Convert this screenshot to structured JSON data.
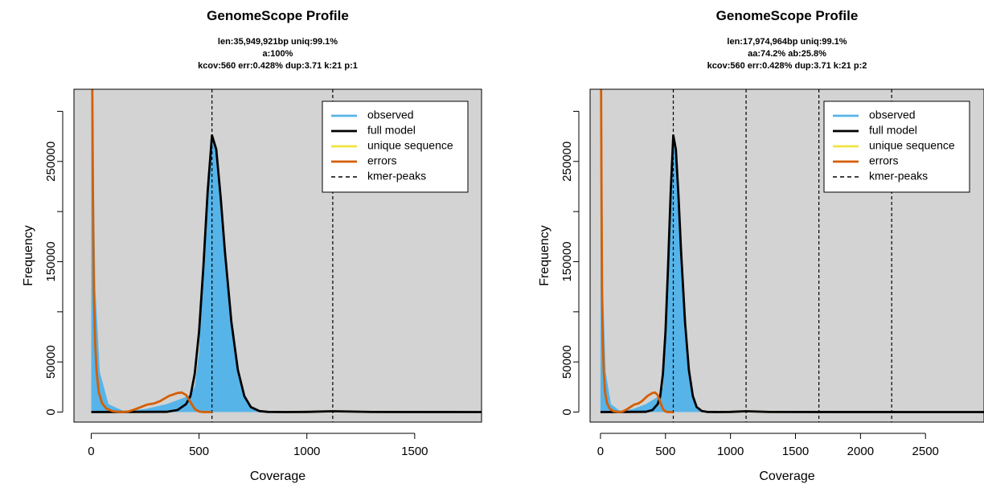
{
  "chart_data": [
    {
      "type": "area",
      "title": "GenomeScope Profile",
      "subtitle_lines": [
        "len:35,949,921bp uniq:99.1%",
        "a:100%",
        "kcov:560 err:0.428%  dup:3.71  k:21 p:1"
      ],
      "xlabel": "Coverage",
      "ylabel": "Frequency",
      "xlim": [
        -80,
        1810
      ],
      "ylim": [
        -10000,
        322000
      ],
      "x_ticks": [
        0,
        500,
        1000,
        1500
      ],
      "y_ticks": [
        0,
        50000,
        100000,
        150000,
        200000,
        250000,
        300000
      ],
      "y_tick_labels": [
        "0",
        "50000",
        "",
        "150000",
        "",
        "250000",
        ""
      ],
      "background": "#d3d3d3",
      "kmer_peaks": [
        560,
        1120
      ],
      "legend_position": "top-right",
      "legend": [
        "observed",
        "full model",
        "unique sequence",
        "errors",
        "kmer-peaks"
      ],
      "colors": {
        "observed": "#56b4e9",
        "full_model": "#000000",
        "unique_sequence": "#f0e442",
        "errors": "#d55e00"
      },
      "model": {
        "kcov": 560,
        "peak_height": 276000,
        "ploidy": 1
      },
      "series": [
        {
          "name": "observed",
          "x": [
            0,
            5,
            10,
            20,
            40,
            80,
            150,
            250,
            350,
            400,
            450,
            480,
            500,
            520,
            540,
            560,
            580,
            600,
            630,
            660,
            700,
            750,
            800,
            900,
            1000,
            1120,
            1300,
            1500,
            1810
          ],
          "y": [
            322000,
            322000,
            250000,
            120000,
            40000,
            8000,
            1000,
            3000,
            8000,
            12000,
            16000,
            25000,
            60000,
            150000,
            230000,
            275000,
            262000,
            220000,
            140000,
            70000,
            20000,
            4000,
            800,
            200,
            100,
            800,
            100,
            50,
            0
          ]
        },
        {
          "name": "full model",
          "x": [
            0,
            350,
            400,
            440,
            460,
            480,
            500,
            520,
            540,
            560,
            580,
            600,
            620,
            650,
            680,
            710,
            740,
            780,
            820,
            900,
            1000,
            1120,
            1300,
            1810
          ],
          "y": [
            0,
            300,
            2000,
            8000,
            16000,
            38000,
            80000,
            145000,
            220000,
            276000,
            262000,
            215000,
            160000,
            90000,
            42000,
            16000,
            5000,
            1000,
            200,
            50,
            200,
            800,
            100,
            0
          ]
        },
        {
          "name": "unique sequence",
          "x": [
            900,
            1000,
            1120,
            1250,
            1400
          ],
          "y": [
            0,
            300,
            800,
            300,
            0
          ]
        },
        {
          "name": "errors",
          "x": [
            5,
            8,
            12,
            18,
            25,
            35,
            50,
            70,
            100,
            140,
            170,
            200,
            230,
            260,
            290,
            320,
            360,
            400,
            420,
            440,
            460,
            480,
            500,
            520,
            560
          ],
          "y": [
            322000,
            220000,
            120000,
            70000,
            40000,
            20000,
            9000,
            3500,
            800,
            0,
            500,
            2500,
            5000,
            7500,
            8500,
            11000,
            16000,
            19000,
            19500,
            17000,
            10000,
            3000,
            500,
            0,
            0
          ]
        }
      ]
    },
    {
      "type": "area",
      "title": "GenomeScope Profile",
      "subtitle_lines": [
        "len:17,974,964bp uniq:99.1%",
        "aa:74.2% ab:25.8%",
        "kcov:560 err:0.428%  dup:3.71  k:21 p:2"
      ],
      "xlabel": "Coverage",
      "ylabel": "Frequency",
      "xlim": [
        -80,
        2950
      ],
      "ylim": [
        -10000,
        322000
      ],
      "x_ticks": [
        0,
        500,
        1000,
        1500,
        2000,
        2500
      ],
      "y_ticks": [
        0,
        50000,
        100000,
        150000,
        200000,
        250000,
        300000
      ],
      "y_tick_labels": [
        "0",
        "50000",
        "",
        "150000",
        "",
        "250000",
        ""
      ],
      "background": "#d3d3d3",
      "kmer_peaks": [
        560,
        1120,
        1680,
        2240
      ],
      "legend_position": "top-right",
      "legend": [
        "observed",
        "full model",
        "unique sequence",
        "errors",
        "kmer-peaks"
      ],
      "colors": {
        "observed": "#56b4e9",
        "full_model": "#000000",
        "unique_sequence": "#f0e442",
        "errors": "#d55e00"
      },
      "model": {
        "kcov": 560,
        "peak_height": 276000,
        "ploidy": 2
      },
      "series": [
        {
          "name": "observed",
          "x": [
            0,
            5,
            10,
            20,
            40,
            80,
            150,
            250,
            350,
            400,
            450,
            480,
            500,
            520,
            540,
            560,
            580,
            600,
            630,
            660,
            700,
            750,
            800,
            900,
            1000,
            1120,
            1300,
            1500,
            2950
          ],
          "y": [
            322000,
            322000,
            250000,
            120000,
            40000,
            8000,
            1000,
            3000,
            8000,
            12000,
            16000,
            25000,
            60000,
            150000,
            230000,
            275000,
            262000,
            220000,
            140000,
            70000,
            20000,
            4000,
            800,
            200,
            100,
            800,
            100,
            50,
            0
          ]
        },
        {
          "name": "full model",
          "x": [
            0,
            350,
            400,
            440,
            460,
            480,
            500,
            520,
            540,
            560,
            580,
            600,
            620,
            650,
            680,
            710,
            740,
            780,
            820,
            900,
            1000,
            1120,
            1300,
            2950
          ],
          "y": [
            0,
            300,
            2000,
            8000,
            16000,
            38000,
            80000,
            145000,
            220000,
            276000,
            262000,
            215000,
            160000,
            90000,
            42000,
            16000,
            5000,
            1000,
            200,
            50,
            200,
            800,
            100,
            0
          ]
        },
        {
          "name": "unique sequence",
          "x": [
            900,
            1000,
            1120,
            1250,
            1400
          ],
          "y": [
            0,
            300,
            800,
            300,
            0
          ]
        },
        {
          "name": "errors",
          "x": [
            5,
            8,
            12,
            18,
            25,
            35,
            50,
            70,
            100,
            140,
            170,
            200,
            230,
            260,
            290,
            320,
            360,
            400,
            420,
            440,
            460,
            480,
            500,
            520,
            560
          ],
          "y": [
            322000,
            220000,
            120000,
            70000,
            40000,
            20000,
            9000,
            3500,
            800,
            0,
            500,
            2500,
            5000,
            7500,
            8500,
            11000,
            16000,
            19000,
            19500,
            17000,
            10000,
            3000,
            500,
            0,
            0
          ]
        }
      ]
    }
  ]
}
